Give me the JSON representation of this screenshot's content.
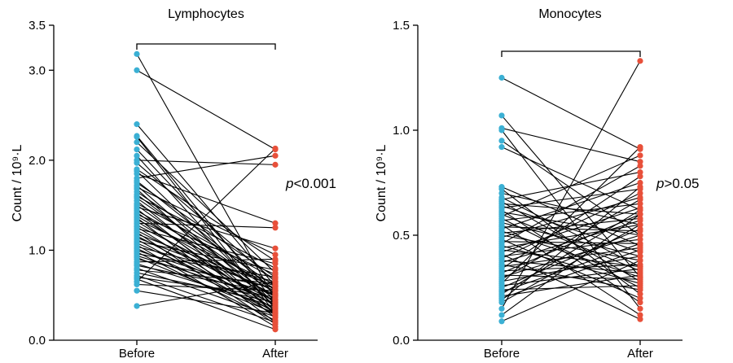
{
  "chart_data": [
    {
      "type": "scatter",
      "style": "paired-lines",
      "title": "Lymphocytes",
      "ylabel": "Count / 10⁹·L",
      "ylim": [
        0,
        3.5
      ],
      "yticks": [
        "0.0",
        "1.0",
        "2.0",
        "3.0",
        "3.5"
      ],
      "ytick_values": [
        0,
        1,
        2,
        3,
        3.5
      ],
      "categories": [
        "Before",
        "After"
      ],
      "p_italic": "p",
      "p_text": "<0.001",
      "colors": {
        "before": "#3BB0D4",
        "after": "#E8503A"
      },
      "pairs": [
        [
          3.18,
          0.45
        ],
        [
          3.0,
          2.12
        ],
        [
          2.4,
          0.6
        ],
        [
          2.27,
          0.42
        ],
        [
          2.26,
          0.3
        ],
        [
          2.2,
          0.75
        ],
        [
          2.12,
          0.5
        ],
        [
          2.05,
          0.35
        ],
        [
          2.0,
          1.95
        ],
        [
          1.97,
          0.65
        ],
        [
          1.9,
          0.88
        ],
        [
          1.88,
          0.4
        ],
        [
          1.85,
          1.3
        ],
        [
          1.8,
          2.05
        ],
        [
          1.77,
          0.55
        ],
        [
          1.75,
          0.7
        ],
        [
          1.72,
          0.38
        ],
        [
          1.7,
          0.95
        ],
        [
          1.68,
          0.28
        ],
        [
          1.65,
          0.6
        ],
        [
          1.62,
          0.45
        ],
        [
          1.6,
          0.8
        ],
        [
          1.58,
          0.52
        ],
        [
          1.55,
          0.3
        ],
        [
          1.52,
          0.68
        ],
        [
          1.5,
          0.42
        ],
        [
          1.48,
          1.02
        ],
        [
          1.46,
          0.25
        ],
        [
          1.44,
          0.57
        ],
        [
          1.42,
          0.33
        ],
        [
          1.4,
          0.73
        ],
        [
          1.38,
          0.48
        ],
        [
          1.36,
          0.2
        ],
        [
          1.34,
          0.62
        ],
        [
          1.32,
          0.38
        ],
        [
          1.3,
          1.25
        ],
        [
          1.28,
          0.5
        ],
        [
          1.26,
          0.3
        ],
        [
          1.24,
          0.85
        ],
        [
          1.22,
          0.43
        ],
        [
          1.2,
          0.18
        ],
        [
          1.18,
          0.6
        ],
        [
          1.16,
          0.35
        ],
        [
          1.14,
          0.55
        ],
        [
          1.12,
          0.28
        ],
        [
          1.1,
          0.78
        ],
        [
          1.08,
          0.4
        ],
        [
          1.06,
          0.15
        ],
        [
          1.04,
          0.65
        ],
        [
          1.02,
          0.32
        ],
        [
          1.0,
          0.5
        ],
        [
          0.98,
          0.22
        ],
        [
          0.96,
          0.7
        ],
        [
          0.94,
          0.45
        ],
        [
          0.92,
          0.3
        ],
        [
          0.9,
          0.58
        ],
        [
          0.87,
          0.9
        ],
        [
          0.85,
          0.37
        ],
        [
          0.83,
          0.52
        ],
        [
          0.8,
          0.26
        ],
        [
          0.78,
          0.63
        ],
        [
          0.75,
          0.42
        ],
        [
          0.72,
          0.2
        ],
        [
          0.7,
          0.48
        ],
        [
          0.68,
          0.12
        ],
        [
          0.65,
          2.13
        ],
        [
          0.62,
          0.55
        ],
        [
          0.55,
          0.3
        ],
        [
          0.38,
          0.65
        ]
      ]
    },
    {
      "type": "scatter",
      "style": "paired-lines",
      "title": "Monocytes",
      "ylabel": "Count / 10⁹·L",
      "ylim": [
        0,
        1.5
      ],
      "yticks": [
        "0.0",
        "0.5",
        "1.0",
        "1.5"
      ],
      "ytick_values": [
        0,
        0.5,
        1.0,
        1.5
      ],
      "categories": [
        "Before",
        "After"
      ],
      "p_italic": "p",
      "p_text": ">0.05",
      "colors": {
        "before": "#3BB0D4",
        "after": "#E8503A"
      },
      "pairs": [
        [
          1.25,
          0.91
        ],
        [
          1.07,
          0.3
        ],
        [
          1.01,
          0.85
        ],
        [
          1.0,
          0.15
        ],
        [
          0.95,
          0.5
        ],
        [
          0.92,
          0.62
        ],
        [
          0.73,
          0.45
        ],
        [
          0.72,
          0.22
        ],
        [
          0.7,
          0.55
        ],
        [
          0.68,
          0.35
        ],
        [
          0.67,
          0.8
        ],
        [
          0.66,
          0.28
        ],
        [
          0.65,
          0.6
        ],
        [
          0.64,
          0.42
        ],
        [
          0.63,
          0.72
        ],
        [
          0.62,
          0.18
        ],
        [
          0.61,
          0.5
        ],
        [
          0.6,
          0.33
        ],
        [
          0.59,
          0.88
        ],
        [
          0.58,
          0.25
        ],
        [
          0.57,
          0.65
        ],
        [
          0.56,
          0.4
        ],
        [
          0.55,
          0.12
        ],
        [
          0.54,
          0.52
        ],
        [
          0.53,
          0.75
        ],
        [
          0.52,
          0.3
        ],
        [
          0.51,
          0.58
        ],
        [
          0.5,
          0.38
        ],
        [
          0.49,
          0.68
        ],
        [
          0.48,
          0.2
        ],
        [
          0.47,
          0.46
        ],
        [
          0.46,
          0.83
        ],
        [
          0.45,
          0.27
        ],
        [
          0.44,
          0.55
        ],
        [
          0.43,
          0.35
        ],
        [
          0.42,
          0.63
        ],
        [
          0.41,
          0.1
        ],
        [
          0.4,
          0.48
        ],
        [
          0.39,
          0.7
        ],
        [
          0.38,
          0.32
        ],
        [
          0.37,
          0.57
        ],
        [
          0.36,
          0.24
        ],
        [
          0.35,
          0.44
        ],
        [
          0.34,
          0.78
        ],
        [
          0.33,
          0.36
        ],
        [
          0.32,
          0.6
        ],
        [
          0.31,
          0.29
        ],
        [
          0.3,
          0.5
        ],
        [
          0.29,
          0.67
        ],
        [
          0.28,
          0.4
        ],
        [
          0.27,
          0.92
        ],
        [
          0.26,
          0.34
        ],
        [
          0.25,
          0.53
        ],
        [
          0.24,
          0.26
        ],
        [
          0.23,
          0.46
        ],
        [
          0.22,
          0.62
        ],
        [
          0.21,
          0.31
        ],
        [
          0.2,
          0.43
        ],
        [
          0.19,
          0.73
        ],
        [
          0.18,
          0.55
        ],
        [
          0.15,
          1.33
        ],
        [
          0.12,
          0.6
        ],
        [
          0.09,
          0.38
        ]
      ]
    }
  ]
}
